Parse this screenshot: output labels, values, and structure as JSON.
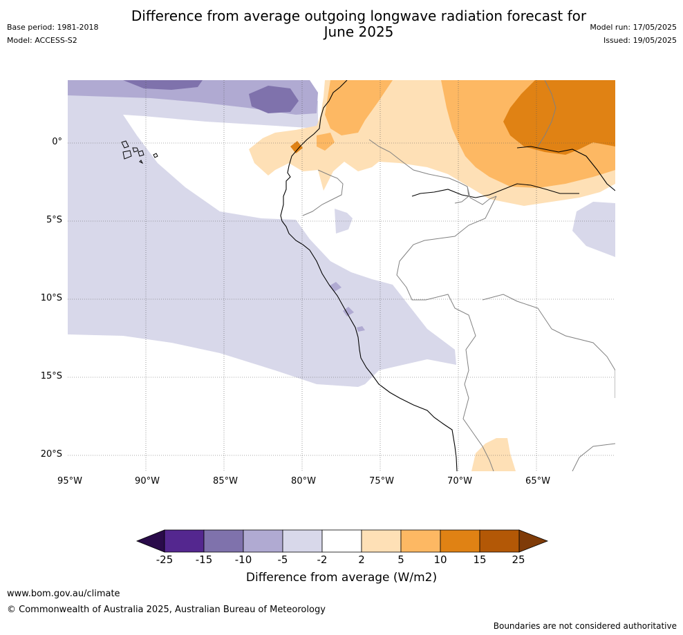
{
  "header": {
    "title_line1": "Difference from average outgoing longwave radiation forecast for",
    "title_line2": "June 2025",
    "base_period": "Base period: 1981-2018",
    "model": "Model: ACCESS-S2",
    "model_run": "Model run: 17/05/2025",
    "issued": "Issued: 19/05/2025"
  },
  "map": {
    "lat_labels": [
      "0°",
      "5°S",
      "10°S",
      "15°S",
      "20°S"
    ],
    "lon_labels": [
      "95°W",
      "90°W",
      "85°W",
      "80°W",
      "75°W",
      "70°W",
      "65°W"
    ],
    "colors": {
      "below_25": "#2a0b4a",
      "n25_n15": "#54278f",
      "n15_n10": "#7f72ac",
      "n10_n5": "#b0aad2",
      "n5_n2": "#d8d8ea",
      "n2_2": "#ffffff",
      "p2_5": "#fee0b6",
      "p5_10": "#fdb863",
      "p10_15": "#e08214",
      "p15_25": "#b35806",
      "above_25": "#7f3b08",
      "coast": "#000000",
      "border": "#808080",
      "grid": "#555555"
    }
  },
  "colorbar": {
    "ticks": [
      "-25",
      "-15",
      "-10",
      "-5",
      "-2",
      "2",
      "5",
      "10",
      "15",
      "25"
    ],
    "label": "Difference from average (W/m2)"
  },
  "footer": {
    "url": "www.bom.gov.au/climate",
    "copyright": "© Commonwealth of Australia 2025, Australian Bureau of Meteorology",
    "disclaimer": "Boundaries are not considered authoritative"
  }
}
